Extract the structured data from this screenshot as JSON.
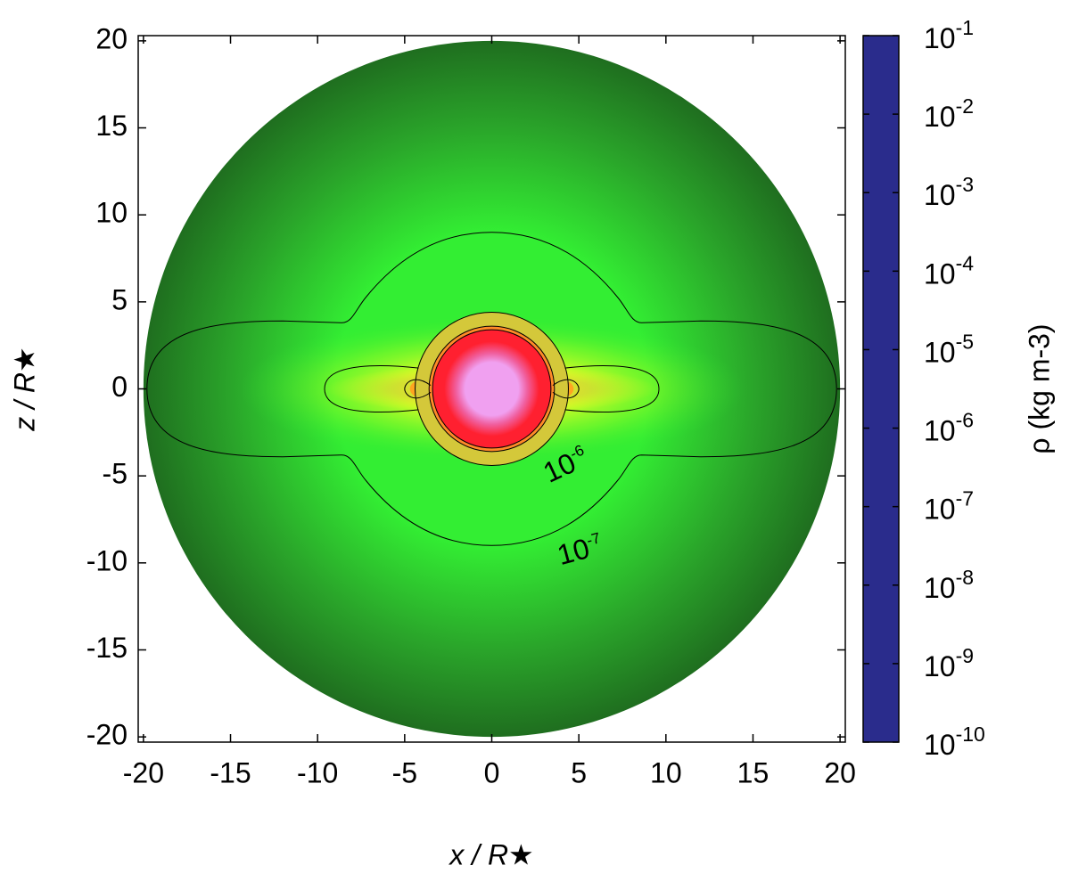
{
  "chart_data": {
    "type": "density-map",
    "xlabel": "x / R★",
    "ylabel": "z / R★",
    "xlim": [
      -20.3,
      20.3
    ],
    "ylim": [
      -20.3,
      20.3
    ],
    "xticks": [
      -20,
      -15,
      -10,
      -5,
      0,
      5,
      10,
      15,
      20
    ],
    "yticks": [
      -20,
      -15,
      -10,
      -5,
      0,
      5,
      10,
      15,
      20
    ],
    "grid": false,
    "colorbar": {
      "label": "ρ (kg m-3)",
      "log": true,
      "lim": [
        1e-10,
        0.1
      ],
      "ticks": [
        {
          "value": 1e-10,
          "label": "10-10"
        },
        {
          "value": 1e-09,
          "label": "10-9"
        },
        {
          "value": 1e-08,
          "label": "10-8"
        },
        {
          "value": 1e-07,
          "label": "10-7"
        },
        {
          "value": 1e-06,
          "label": "10-6"
        },
        {
          "value": 1e-05,
          "label": "10-5"
        },
        {
          "value": 0.0001,
          "label": "10-4"
        },
        {
          "value": 0.001,
          "label": "10-3"
        },
        {
          "value": 0.01,
          "label": "10-2"
        },
        {
          "value": 0.1,
          "label": "10-1"
        }
      ],
      "colormap": [
        "#2a2c8c",
        "#2e36c8",
        "#3333ff",
        "#2a6a80",
        "#1f6e1f",
        "#2aa52a",
        "#33ee33",
        "#aaff22",
        "#ffff22",
        "#d4c83a",
        "#ffa520",
        "#ff8a28",
        "#ff6a2a",
        "#ff3a2a",
        "#ff2030",
        "#ff2845",
        "#f060a0",
        "#f090d8",
        "#f0a0f0"
      ]
    },
    "annotations": [
      "10-6",
      "10-7"
    ]
  }
}
